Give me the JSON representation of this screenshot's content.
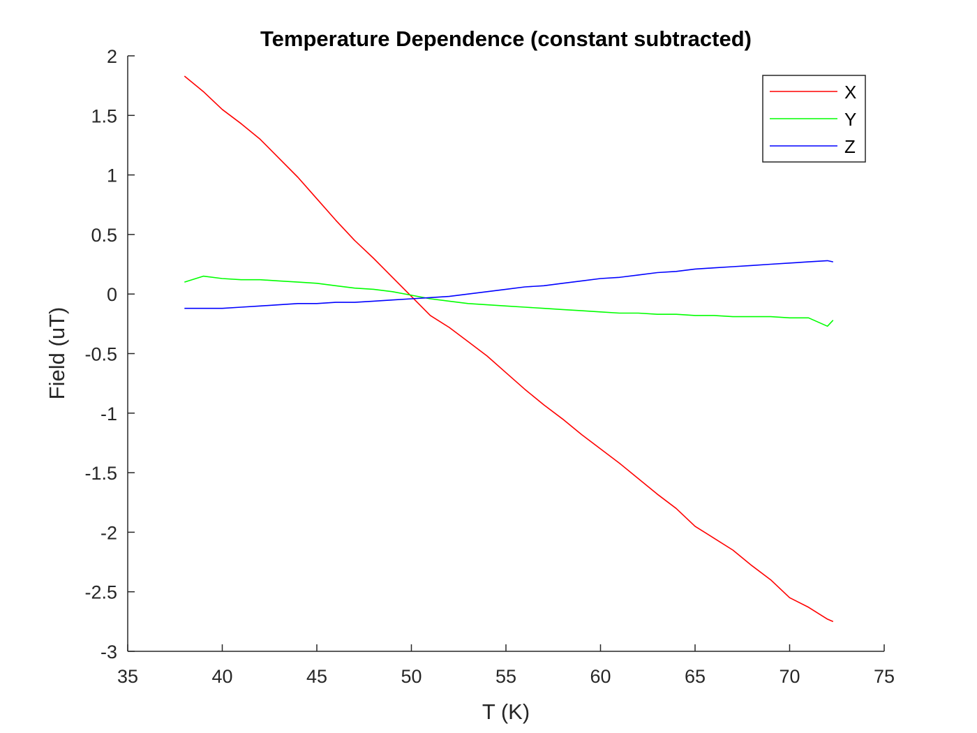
{
  "chart_data": {
    "type": "line",
    "title": "Temperature Dependence (constant subtracted)",
    "xlabel": "T (K)",
    "ylabel": "Field (uT)",
    "xlim": [
      35,
      75
    ],
    "ylim": [
      -3,
      2
    ],
    "xticks": [
      35,
      40,
      45,
      50,
      55,
      60,
      65,
      70,
      75
    ],
    "yticks": [
      -3,
      -2.5,
      -2,
      -1.5,
      -1,
      -0.5,
      0,
      0.5,
      1,
      1.5,
      2
    ],
    "xtick_labels": [
      "35",
      "40",
      "45",
      "50",
      "55",
      "60",
      "65",
      "70",
      "75"
    ],
    "ytick_labels": [
      "-3",
      "-2.5",
      "-2",
      "-1.5",
      "-1",
      "-0.5",
      "0",
      "0.5",
      "1",
      "1.5",
      "2"
    ],
    "grid": false,
    "legend_position": "top-right",
    "series": [
      {
        "name": "X",
        "color": "#ff0000",
        "x": [
          38,
          39,
          40,
          41,
          42,
          43,
          44,
          45,
          46,
          47,
          48,
          49,
          50,
          51,
          52,
          53,
          54,
          55,
          56,
          57,
          58,
          59,
          60,
          61,
          62,
          63,
          64,
          65,
          66,
          67,
          68,
          69,
          70,
          71,
          72,
          72.3
        ],
        "y": [
          1.83,
          1.7,
          1.55,
          1.43,
          1.3,
          1.14,
          0.98,
          0.8,
          0.62,
          0.45,
          0.3,
          0.14,
          -0.02,
          -0.18,
          -0.28,
          -0.4,
          -0.52,
          -0.66,
          -0.8,
          -0.93,
          -1.05,
          -1.18,
          -1.3,
          -1.42,
          -1.55,
          -1.68,
          -1.8,
          -1.95,
          -2.05,
          -2.15,
          -2.28,
          -2.4,
          -2.55,
          -2.63,
          -2.73,
          -2.75
        ]
      },
      {
        "name": "Y",
        "color": "#00ff00",
        "x": [
          38,
          39,
          40,
          41,
          42,
          43,
          44,
          45,
          46,
          47,
          48,
          49,
          50,
          51,
          52,
          53,
          54,
          55,
          56,
          57,
          58,
          59,
          60,
          61,
          62,
          63,
          64,
          65,
          66,
          67,
          68,
          69,
          70,
          71,
          72,
          72.3
        ],
        "y": [
          0.1,
          0.15,
          0.13,
          0.12,
          0.12,
          0.11,
          0.1,
          0.09,
          0.07,
          0.05,
          0.04,
          0.02,
          -0.01,
          -0.04,
          -0.06,
          -0.08,
          -0.09,
          -0.1,
          -0.11,
          -0.12,
          -0.13,
          -0.14,
          -0.15,
          -0.16,
          -0.16,
          -0.17,
          -0.17,
          -0.18,
          -0.18,
          -0.19,
          -0.19,
          -0.19,
          -0.2,
          -0.2,
          -0.27,
          -0.22
        ]
      },
      {
        "name": "Z",
        "color": "#0000ff",
        "x": [
          38,
          39,
          40,
          41,
          42,
          43,
          44,
          45,
          46,
          47,
          48,
          49,
          50,
          51,
          52,
          53,
          54,
          55,
          56,
          57,
          58,
          59,
          60,
          61,
          62,
          63,
          64,
          65,
          66,
          67,
          68,
          69,
          70,
          71,
          72,
          72.3
        ],
        "y": [
          -0.12,
          -0.12,
          -0.12,
          -0.11,
          -0.1,
          -0.09,
          -0.08,
          -0.08,
          -0.07,
          -0.07,
          -0.06,
          -0.05,
          -0.04,
          -0.03,
          -0.02,
          0.0,
          0.02,
          0.04,
          0.06,
          0.07,
          0.09,
          0.11,
          0.13,
          0.14,
          0.16,
          0.18,
          0.19,
          0.21,
          0.22,
          0.23,
          0.24,
          0.25,
          0.26,
          0.27,
          0.28,
          0.27
        ]
      }
    ]
  }
}
